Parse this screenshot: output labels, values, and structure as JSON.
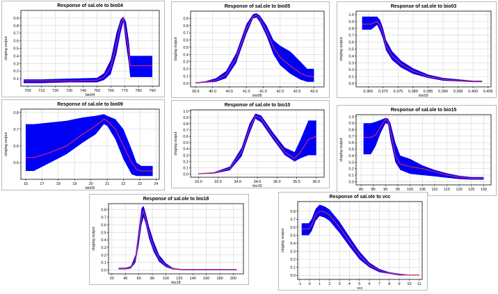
{
  "colors": {
    "band": "#0000f5",
    "mean": "#ff2a4a",
    "grid": "#d4d4d4",
    "axis": "#000000"
  },
  "chart_data": [
    {
      "id": "bio04",
      "type": "area",
      "title": "Response of sal.ole to bio04",
      "xlabel": "bio04",
      "ylabel": "cloglog output",
      "xlim": [
        695,
        795
      ],
      "ylim": [
        0,
        1.0
      ],
      "xticks": [
        700,
        710,
        720,
        730,
        740,
        750,
        760,
        770,
        780,
        790
      ],
      "yticks": [
        0.1,
        0.2,
        0.3,
        0.4,
        0.5,
        0.6,
        0.7,
        0.8,
        0.9
      ],
      "x": [
        697,
        710,
        730,
        750,
        755,
        760,
        764,
        767,
        769,
        771,
        773,
        774,
        776,
        790
      ],
      "mean": [
        0.07,
        0.07,
        0.07,
        0.08,
        0.12,
        0.25,
        0.55,
        0.82,
        0.9,
        0.68,
        0.45,
        0.27,
        0.27,
        0.27
      ],
      "upper": [
        0.09,
        0.09,
        0.1,
        0.11,
        0.17,
        0.35,
        0.7,
        0.88,
        0.92,
        0.85,
        0.6,
        0.4,
        0.4,
        0.4
      ],
      "lower": [
        0.04,
        0.04,
        0.05,
        0.05,
        0.08,
        0.16,
        0.42,
        0.7,
        0.85,
        0.55,
        0.3,
        0.12,
        0.12,
        0.12
      ]
    },
    {
      "id": "bio05",
      "type": "area",
      "title": "Response of sal.ole to bio05",
      "xlabel": "bio05",
      "ylabel": "cloglog output",
      "xlim": [
        39.35,
        43.3
      ],
      "ylim": [
        -0.05,
        1.0
      ],
      "xticks": [
        39.5,
        40.0,
        40.5,
        41.0,
        41.5,
        42.0,
        42.5,
        43.0
      ],
      "xtick_labels": [
        "39.5",
        "40.0",
        "40.5",
        "41.0",
        "41.5",
        "42.0",
        "42.5",
        "43.0"
      ],
      "yticks": [
        0.0,
        0.1,
        0.2,
        0.3,
        0.4,
        0.5,
        0.6,
        0.7,
        0.8,
        0.9
      ],
      "x": [
        39.5,
        39.8,
        40.1,
        40.4,
        40.7,
        41.0,
        41.2,
        41.3,
        41.4,
        41.6,
        41.8,
        42.0,
        42.3,
        42.6,
        42.8,
        43.0
      ],
      "mean": [
        0.01,
        0.02,
        0.04,
        0.12,
        0.35,
        0.75,
        0.93,
        0.94,
        0.9,
        0.72,
        0.5,
        0.36,
        0.24,
        0.14,
        0.1,
        0.09
      ],
      "upper": [
        0.01,
        0.03,
        0.07,
        0.17,
        0.42,
        0.82,
        0.96,
        0.97,
        0.94,
        0.8,
        0.6,
        0.52,
        0.44,
        0.3,
        0.2,
        0.2
      ],
      "lower": [
        0.0,
        0.01,
        0.02,
        0.07,
        0.28,
        0.68,
        0.9,
        0.91,
        0.85,
        0.65,
        0.4,
        0.25,
        0.13,
        0.05,
        0.02,
        0.02
      ]
    },
    {
      "id": "bio03",
      "type": "area",
      "title": "Response of sal.ole to bio03",
      "xlabel": "bio03",
      "ylabel": "cloglog output",
      "xlim": [
        0.361,
        0.406
      ],
      "ylim": [
        -0.05,
        1.05
      ],
      "xticks": [
        0.365,
        0.37,
        0.375,
        0.38,
        0.385,
        0.39,
        0.395,
        0.4,
        0.405
      ],
      "xtick_labels": [
        "0.365",
        "0.370",
        "0.375",
        "0.380",
        "0.385",
        "0.390",
        "0.395",
        "0.400",
        "0.405"
      ],
      "yticks": [
        0.0,
        0.1,
        0.2,
        0.3,
        0.4,
        0.5,
        0.6,
        0.7,
        0.8,
        0.9,
        1.0
      ],
      "x": [
        0.363,
        0.366,
        0.368,
        0.369,
        0.37,
        0.371,
        0.373,
        0.376,
        0.38,
        0.385,
        0.39,
        0.395,
        0.4,
        0.403
      ],
      "mean": [
        0.86,
        0.86,
        0.9,
        0.84,
        0.72,
        0.55,
        0.4,
        0.28,
        0.18,
        0.1,
        0.06,
        0.04,
        0.03,
        0.03
      ],
      "upper": [
        0.97,
        0.97,
        0.97,
        0.92,
        0.8,
        0.63,
        0.47,
        0.33,
        0.22,
        0.13,
        0.08,
        0.06,
        0.04,
        0.04
      ],
      "lower": [
        0.78,
        0.78,
        0.85,
        0.76,
        0.64,
        0.48,
        0.34,
        0.23,
        0.14,
        0.08,
        0.04,
        0.03,
        0.02,
        0.02
      ]
    },
    {
      "id": "bio09",
      "type": "area",
      "title": "Response of sal.ole to bio09",
      "xlabel": "bio09",
      "ylabel": "cloglog output",
      "xlim": [
        15.7,
        24.2
      ],
      "ylim": [
        0.4,
        0.82
      ],
      "xticks": [
        16,
        17,
        18,
        19,
        20,
        21,
        22,
        23,
        24
      ],
      "yticks": [
        0.5,
        0.6,
        0.7,
        0.8
      ],
      "x": [
        16.0,
        16.5,
        17.5,
        18.5,
        19.5,
        20.3,
        20.8,
        21.0,
        21.5,
        22.0,
        22.5,
        22.8,
        23.1,
        23.8
      ],
      "mean": [
        0.53,
        0.53,
        0.56,
        0.6,
        0.67,
        0.72,
        0.76,
        0.75,
        0.7,
        0.6,
        0.5,
        0.46,
        0.45,
        0.45
      ],
      "upper": [
        0.73,
        0.73,
        0.74,
        0.75,
        0.77,
        0.78,
        0.79,
        0.78,
        0.76,
        0.7,
        0.58,
        0.5,
        0.48,
        0.48
      ],
      "lower": [
        0.45,
        0.45,
        0.5,
        0.55,
        0.62,
        0.67,
        0.73,
        0.72,
        0.64,
        0.52,
        0.43,
        0.42,
        0.42,
        0.42
      ]
    },
    {
      "id": "bio10",
      "type": "area",
      "title": "Response of sal.ole to bio10",
      "xlabel": "bio10",
      "ylabel": "cloglog output",
      "xlim": [
        32.8,
        36.2
      ],
      "ylim": [
        -0.05,
        1.02
      ],
      "xticks": [
        33.0,
        33.5,
        34.0,
        34.5,
        35.0,
        35.5,
        36.0
      ],
      "xtick_labels": [
        "33.0",
        "33.5",
        "34.0",
        "34.5",
        "35.0",
        "35.5",
        "36.0"
      ],
      "yticks": [
        0.0,
        0.1,
        0.2,
        0.3,
        0.4,
        0.5,
        0.6,
        0.7,
        0.8,
        0.9,
        1.0
      ],
      "x": [
        33.0,
        33.4,
        33.8,
        34.1,
        34.3,
        34.45,
        34.6,
        34.9,
        35.2,
        35.45,
        35.6,
        35.8,
        36.0
      ],
      "mean": [
        0.01,
        0.02,
        0.09,
        0.35,
        0.72,
        0.92,
        0.88,
        0.6,
        0.35,
        0.25,
        0.35,
        0.55,
        0.6
      ],
      "upper": [
        0.01,
        0.03,
        0.12,
        0.42,
        0.8,
        0.96,
        0.93,
        0.66,
        0.42,
        0.35,
        0.55,
        0.85,
        0.85
      ],
      "lower": [
        0.0,
        0.01,
        0.06,
        0.28,
        0.64,
        0.88,
        0.82,
        0.55,
        0.3,
        0.2,
        0.25,
        0.3,
        0.3
      ]
    },
    {
      "id": "bio15",
      "type": "area",
      "title": "Response of sal.ole to bio15",
      "xlabel": "bio15",
      "ylabel": "cloglog output",
      "xlim": [
        78,
        133
      ],
      "ylim": [
        -0.05,
        1.03
      ],
      "xticks": [
        80,
        85,
        90,
        95,
        100,
        105,
        110,
        115,
        120,
        125,
        130
      ],
      "yticks": [
        0.0,
        0.1,
        0.2,
        0.3,
        0.4,
        0.5,
        0.6,
        0.7,
        0.8,
        0.9,
        1.0
      ],
      "x": [
        81,
        84,
        86,
        88,
        90,
        91,
        92,
        94,
        96,
        100,
        105,
        110,
        115,
        120,
        125,
        130
      ],
      "mean": [
        0.68,
        0.68,
        0.72,
        0.85,
        0.96,
        0.93,
        0.78,
        0.4,
        0.27,
        0.23,
        0.2,
        0.15,
        0.1,
        0.07,
        0.05,
        0.05
      ],
      "upper": [
        0.9,
        0.9,
        0.92,
        0.95,
        0.98,
        0.97,
        0.9,
        0.6,
        0.4,
        0.35,
        0.25,
        0.18,
        0.13,
        0.09,
        0.07,
        0.07
      ],
      "lower": [
        0.42,
        0.42,
        0.55,
        0.75,
        0.9,
        0.88,
        0.65,
        0.3,
        0.18,
        0.12,
        0.1,
        0.08,
        0.06,
        0.04,
        0.03,
        0.03
      ]
    },
    {
      "id": "bio18",
      "type": "area",
      "title": "Response of sal.ole to bio18",
      "xlabel": "bio18",
      "ylabel": "cloglog output",
      "xlim": [
        15,
        215
      ],
      "ylim": [
        -0.05,
        0.88
      ],
      "xticks": [
        20,
        40,
        60,
        80,
        100,
        120,
        140,
        160,
        180,
        200
      ],
      "yticks": [
        0.0,
        0.1,
        0.2,
        0.3,
        0.4,
        0.5,
        0.6,
        0.7,
        0.8
      ],
      "x": [
        30,
        40,
        48,
        55,
        60,
        64,
        67,
        70,
        75,
        82,
        90,
        100,
        110,
        125,
        140,
        160,
        180,
        205
      ],
      "mean": [
        0.02,
        0.02,
        0.03,
        0.15,
        0.45,
        0.72,
        0.78,
        0.68,
        0.5,
        0.3,
        0.15,
        0.06,
        0.02,
        0.01,
        0.01,
        0.01,
        0.01,
        0.01
      ],
      "upper": [
        0.03,
        0.03,
        0.05,
        0.2,
        0.55,
        0.82,
        0.85,
        0.76,
        0.58,
        0.38,
        0.2,
        0.09,
        0.03,
        0.01,
        0.01,
        0.01,
        0.01,
        0.01
      ],
      "lower": [
        0.01,
        0.01,
        0.02,
        0.1,
        0.35,
        0.6,
        0.7,
        0.62,
        0.42,
        0.24,
        0.11,
        0.04,
        0.01,
        0.0,
        0.0,
        0.0,
        0.0,
        0.0
      ]
    },
    {
      "id": "vcc",
      "type": "area",
      "title": "Response of sal.ole to vcc",
      "xlabel": "vcc",
      "ylabel": "cloglog output",
      "xlim": [
        -1.2,
        11.3
      ],
      "ylim": [
        -0.05,
        0.92
      ],
      "xticks": [
        -1,
        0,
        1,
        2,
        3,
        4,
        5,
        6,
        7,
        8,
        9,
        10,
        11
      ],
      "yticks": [
        0.0,
        0.1,
        0.2,
        0.3,
        0.4,
        0.5,
        0.6,
        0.7,
        0.8
      ],
      "x": [
        -0.8,
        -0.1,
        0.2,
        0.6,
        1.0,
        1.5,
        2.0,
        3.0,
        4.0,
        5.0,
        6.0,
        7.0,
        8.0,
        9.0,
        10.0,
        11.0
      ],
      "mean": [
        0.58,
        0.58,
        0.62,
        0.75,
        0.8,
        0.79,
        0.75,
        0.6,
        0.42,
        0.25,
        0.13,
        0.06,
        0.03,
        0.01,
        0.005,
        0.005
      ],
      "upper": [
        0.65,
        0.65,
        0.7,
        0.83,
        0.88,
        0.86,
        0.82,
        0.67,
        0.48,
        0.3,
        0.16,
        0.08,
        0.04,
        0.02,
        0.01,
        0.01
      ],
      "lower": [
        0.5,
        0.5,
        0.55,
        0.68,
        0.74,
        0.72,
        0.68,
        0.53,
        0.36,
        0.2,
        0.1,
        0.04,
        0.02,
        0.0,
        0.0,
        0.0
      ]
    }
  ]
}
